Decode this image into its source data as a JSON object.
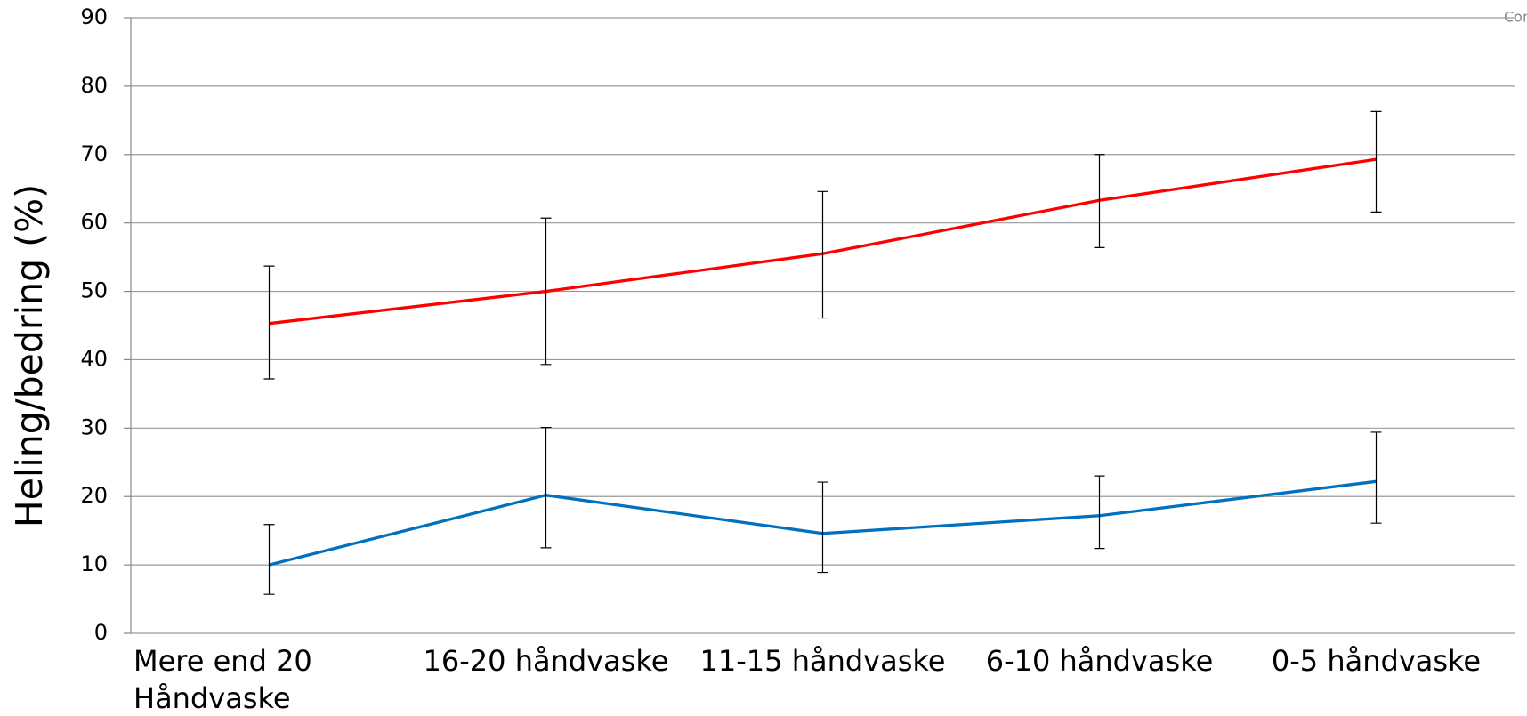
{
  "chart_data": {
    "type": "line",
    "ylabel": "Heling/bedring (%)",
    "annotation": "Con",
    "categories": [
      "Mere end 20 Håndvaske",
      "16-20 håndvaske",
      "11-15 håndvaske",
      "6-10 håndvaske",
      "0-5 håndvaske"
    ],
    "series": [
      {
        "color": "#ff0000",
        "values": [
          45.3,
          50,
          55.5,
          63.3,
          69.3
        ],
        "error_plus": [
          8.4,
          10.7,
          9.1,
          6.7,
          7
        ],
        "error_minus": [
          8.1,
          10.7,
          9.4,
          6.9,
          7.7
        ]
      },
      {
        "color": "#0070c0",
        "values": [
          10,
          20.2,
          14.6,
          17.2,
          22.2
        ],
        "error_plus": [
          5.9,
          9.9,
          7.5,
          5.8,
          7.2
        ],
        "error_minus": [
          4.3,
          7.7,
          5.7,
          4.8,
          6.1
        ]
      }
    ],
    "ylim": [
      0,
      90
    ],
    "yticks": [
      0,
      10,
      20,
      30,
      40,
      50,
      60,
      70,
      80,
      90
    ],
    "grid": true
  }
}
